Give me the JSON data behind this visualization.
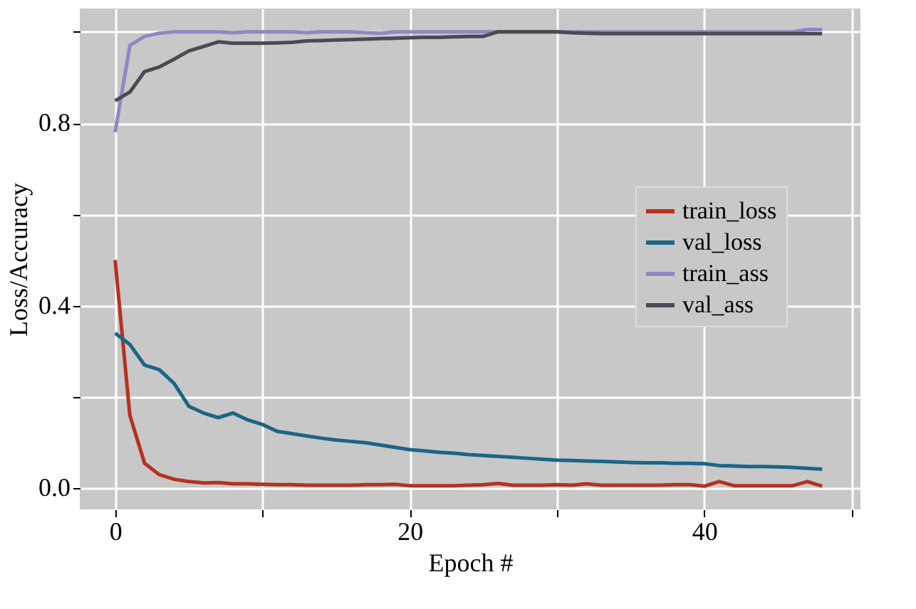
{
  "chart_data": {
    "type": "line",
    "xlabel": "Epoch #",
    "ylabel": "Loss/Accuracy",
    "x": [
      0,
      1,
      2,
      3,
      4,
      5,
      6,
      7,
      8,
      9,
      10,
      11,
      12,
      13,
      14,
      15,
      16,
      17,
      18,
      19,
      20,
      21,
      22,
      23,
      24,
      25,
      26,
      27,
      28,
      29,
      30,
      31,
      32,
      33,
      34,
      35,
      36,
      37,
      38,
      39,
      40,
      41,
      42,
      43,
      44,
      45,
      46,
      47,
      48
    ],
    "series": [
      {
        "name": "train_loss",
        "color": "#b5321f",
        "values": [
          0.5,
          0.16,
          0.055,
          0.03,
          0.02,
          0.015,
          0.012,
          0.013,
          0.01,
          0.01,
          0.009,
          0.008,
          0.008,
          0.007,
          0.007,
          0.007,
          0.007,
          0.008,
          0.008,
          0.009,
          0.006,
          0.006,
          0.006,
          0.006,
          0.007,
          0.008,
          0.011,
          0.007,
          0.007,
          0.007,
          0.008,
          0.007,
          0.01,
          0.007,
          0.007,
          0.007,
          0.007,
          0.007,
          0.008,
          0.008,
          0.005,
          0.015,
          0.006,
          0.006,
          0.006,
          0.006,
          0.006,
          0.015,
          0.005
        ]
      },
      {
        "name": "val_loss",
        "color": "#1c6585",
        "values": [
          0.34,
          0.315,
          0.27,
          0.26,
          0.23,
          0.18,
          0.165,
          0.155,
          0.165,
          0.15,
          0.14,
          0.125,
          0.12,
          0.115,
          0.11,
          0.106,
          0.103,
          0.1,
          0.095,
          0.09,
          0.085,
          0.082,
          0.079,
          0.077,
          0.074,
          0.072,
          0.07,
          0.068,
          0.066,
          0.064,
          0.062,
          0.061,
          0.06,
          0.059,
          0.058,
          0.057,
          0.056,
          0.056,
          0.055,
          0.055,
          0.054,
          0.05,
          0.049,
          0.048,
          0.048,
          0.047,
          0.046,
          0.044,
          0.042
        ]
      },
      {
        "name": "train_ass",
        "color": "#8e88c2",
        "values": [
          0.78,
          0.97,
          0.99,
          0.997,
          1.0,
          1.0,
          1.0,
          1.0,
          0.998,
          1.0,
          1.0,
          1.0,
          1.0,
          0.998,
          1.0,
          1.0,
          1.0,
          0.998,
          0.997,
          1.0,
          1.0,
          1.0,
          1.0,
          1.0,
          1.0,
          1.0,
          1.0,
          1.0,
          1.0,
          1.0,
          1.0,
          1.0,
          1.0,
          1.0,
          1.0,
          1.0,
          1.0,
          1.0,
          1.0,
          1.0,
          1.0,
          1.0,
          1.0,
          1.0,
          1.0,
          1.0,
          1.0,
          1.005,
          1.005
        ]
      },
      {
        "name": "val_ass",
        "color": "#4a4a52",
        "values": [
          0.849,
          0.868,
          0.913,
          0.923,
          0.94,
          0.958,
          0.968,
          0.978,
          0.975,
          0.975,
          0.975,
          0.976,
          0.977,
          0.98,
          0.981,
          0.982,
          0.983,
          0.984,
          0.985,
          0.986,
          0.987,
          0.988,
          0.988,
          0.989,
          0.99,
          0.99,
          1.0,
          1.0,
          1.0,
          1.0,
          1.0,
          0.998,
          0.997,
          0.996,
          0.996,
          0.996,
          0.996,
          0.996,
          0.996,
          0.996,
          0.996,
          0.996,
          0.996,
          0.996,
          0.996,
          0.996,
          0.996,
          0.996,
          0.996
        ]
      }
    ],
    "xlim": [
      -2.4,
      50.6
    ],
    "xticks": [
      0,
      {
        "value": 10,
        "label": null
      },
      20,
      {
        "value": 30,
        "label": null
      },
      40,
      {
        "value": 50,
        "label": null
      }
    ],
    "ylim": [
      -0.046,
      1.051
    ],
    "yticks": [
      {
        "value": 0,
        "label": "0.0"
      },
      {
        "value": 0.2,
        "label": null
      },
      {
        "value": 0.4,
        "label": "0.4"
      },
      {
        "value": 0.6,
        "label": null
      },
      {
        "value": 0.8,
        "label": "0.8"
      },
      {
        "value": 1.0,
        "label": null
      }
    ],
    "grid": true,
    "legend": "right",
    "line_style": "solid",
    "marker": "none"
  }
}
